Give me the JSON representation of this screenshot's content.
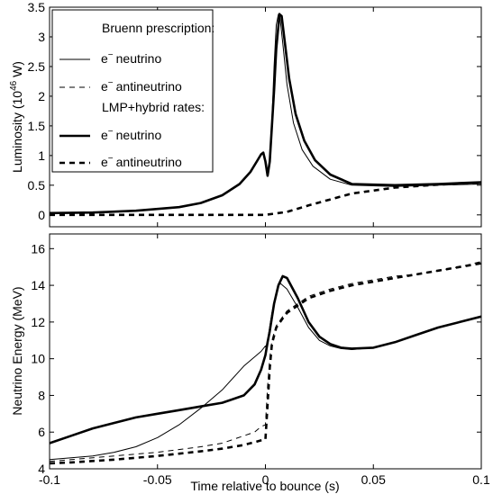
{
  "chart_data": [
    {
      "type": "line",
      "ylabel_main": "Luminosity (10",
      "ylabel_exp": "46",
      "ylabel_unit": " W)",
      "xlim": [
        -0.1,
        0.1
      ],
      "ylim": [
        -0.2,
        3.5
      ],
      "xticks": [
        -0.1,
        -0.05,
        0,
        0.05,
        0.1
      ],
      "yticks": [
        "0",
        "0.5",
        "1",
        "1.5",
        "2",
        "2.5",
        "3",
        "3.5"
      ],
      "ytick_values": [
        0,
        0.5,
        1,
        1.5,
        2,
        2.5,
        3,
        3.5
      ],
      "legend": {
        "group1_title": "Bruenn prescription:",
        "group2_title": "LMP+hybrid rates:",
        "entries": [
          {
            "label": "neutrino",
            "style": "thin-solid"
          },
          {
            "label": "antineutrino",
            "style": "thin-dashed"
          },
          {
            "label": "neutrino",
            "style": "thick-solid"
          },
          {
            "label": "antineutrino",
            "style": "thick-dashed"
          }
        ]
      },
      "series": [
        {
          "style": "thin-solid",
          "x": [
            -0.1,
            -0.08,
            -0.06,
            -0.04,
            -0.03,
            -0.02,
            -0.012,
            -0.007,
            -0.004,
            -0.002,
            -0.001,
            0,
            0.001,
            0.0015,
            0.003,
            0.004,
            0.005,
            0.006,
            0.0065,
            0.008,
            0.01,
            0.013,
            0.017,
            0.022,
            0.03,
            0.04,
            0.06,
            0.08,
            0.1
          ],
          "y": [
            0.03,
            0.04,
            0.07,
            0.13,
            0.2,
            0.33,
            0.52,
            0.72,
            0.9,
            1.02,
            1.05,
            0.9,
            0.66,
            0.72,
            1.6,
            2.5,
            3.2,
            3.38,
            3.4,
            2.9,
            2.2,
            1.55,
            1.1,
            0.82,
            0.6,
            0.5,
            0.48,
            0.5,
            0.52
          ]
        },
        {
          "style": "thin-dashed",
          "x": [
            -0.1,
            -0.05,
            0,
            0.01,
            0.02,
            0.04,
            0.06,
            0.08,
            0.1
          ],
          "y": [
            0.0,
            0.0,
            0.0,
            0.05,
            0.17,
            0.37,
            0.47,
            0.52,
            0.55
          ]
        },
        {
          "style": "thick-solid",
          "x": [
            -0.1,
            -0.08,
            -0.06,
            -0.04,
            -0.03,
            -0.02,
            -0.012,
            -0.007,
            -0.004,
            -0.002,
            -0.001,
            0,
            0.001,
            0.002,
            0.004,
            0.005,
            0.0065,
            0.0075,
            0.009,
            0.011,
            0.014,
            0.018,
            0.023,
            0.03,
            0.04,
            0.06,
            0.08,
            0.1
          ],
          "y": [
            0.03,
            0.04,
            0.07,
            0.13,
            0.2,
            0.33,
            0.52,
            0.72,
            0.9,
            1.02,
            1.05,
            0.9,
            0.66,
            0.9,
            2.1,
            2.8,
            3.38,
            3.35,
            2.9,
            2.3,
            1.7,
            1.25,
            0.92,
            0.68,
            0.52,
            0.5,
            0.52,
            0.55
          ]
        },
        {
          "style": "thick-dashed",
          "x": [
            -0.1,
            -0.05,
            0,
            0.01,
            0.02,
            0.04,
            0.06,
            0.08,
            0.1
          ],
          "y": [
            0.0,
            0.0,
            0.0,
            0.05,
            0.16,
            0.36,
            0.46,
            0.51,
            0.54
          ]
        }
      ]
    },
    {
      "type": "line",
      "xlabel": "Time relative to bounce (s)",
      "ylabel": "Neutrino Energy (MeV)",
      "xlim": [
        -0.1,
        0.1
      ],
      "ylim": [
        4,
        16.8
      ],
      "xticks": [
        -0.1,
        -0.05,
        0,
        0.05,
        0.1
      ],
      "xtick_labels": [
        "-0.1",
        "-0.05",
        "0",
        "0.05",
        "0.1"
      ],
      "yticks": [
        "4",
        "6",
        "8",
        "10",
        "12",
        "14",
        "16"
      ],
      "ytick_values": [
        4,
        6,
        8,
        10,
        12,
        14,
        16
      ],
      "series": [
        {
          "style": "thin-solid",
          "x": [
            -0.1,
            -0.09,
            -0.08,
            -0.07,
            -0.06,
            -0.05,
            -0.04,
            -0.03,
            -0.02,
            -0.01,
            -0.005,
            -0.002,
            0,
            0.0005,
            0.001,
            0.003,
            0.005,
            0.006,
            0.007,
            0.01,
            0.015,
            0.02,
            0.025,
            0.03,
            0.035,
            0.04,
            0.05,
            0.06,
            0.07,
            0.08,
            0.09,
            0.1
          ],
          "y": [
            4.5,
            4.6,
            4.7,
            4.9,
            5.2,
            5.7,
            6.4,
            7.3,
            8.3,
            9.6,
            10.1,
            10.4,
            10.7,
            10.5,
            11.0,
            12.5,
            13.6,
            14.0,
            14.1,
            13.8,
            12.8,
            11.7,
            11.0,
            10.7,
            10.55,
            10.5,
            10.6,
            10.9,
            11.3,
            11.7,
            12.0,
            12.3
          ]
        },
        {
          "style": "thin-dashed",
          "x": [
            -0.1,
            -0.09,
            -0.07,
            -0.05,
            -0.03,
            -0.02,
            -0.01,
            -0.005,
            -0.002,
            0,
            0.001,
            0.002,
            0.003,
            0.005,
            0.008,
            0.01,
            0.02,
            0.03,
            0.04,
            0.05,
            0.06,
            0.07,
            0.08,
            0.09,
            0.1
          ],
          "y": [
            4.4,
            4.5,
            4.7,
            4.9,
            5.2,
            5.4,
            5.8,
            6.0,
            6.3,
            6.4,
            8.5,
            10.0,
            11.0,
            11.8,
            12.3,
            12.6,
            13.4,
            13.8,
            14.1,
            14.3,
            14.5,
            14.6,
            14.8,
            15.0,
            15.3
          ]
        },
        {
          "style": "thick-solid",
          "x": [
            -0.1,
            -0.09,
            -0.08,
            -0.07,
            -0.06,
            -0.05,
            -0.04,
            -0.03,
            -0.02,
            -0.01,
            -0.005,
            -0.002,
            0,
            0.001,
            0.002,
            0.004,
            0.006,
            0.008,
            0.01,
            0.015,
            0.02,
            0.025,
            0.03,
            0.035,
            0.04,
            0.05,
            0.06,
            0.07,
            0.08,
            0.09,
            0.1
          ],
          "y": [
            5.4,
            5.8,
            6.2,
            6.5,
            6.8,
            7.0,
            7.2,
            7.4,
            7.6,
            8.0,
            8.6,
            9.4,
            10.2,
            10.9,
            11.5,
            13.0,
            14.0,
            14.5,
            14.4,
            13.3,
            12.0,
            11.2,
            10.8,
            10.6,
            10.55,
            10.6,
            10.9,
            11.3,
            11.7,
            12.0,
            12.3
          ]
        },
        {
          "style": "thick-dashed",
          "x": [
            -0.1,
            -0.09,
            -0.07,
            -0.05,
            -0.03,
            -0.02,
            -0.01,
            -0.005,
            -0.002,
            0,
            0.001,
            0.002,
            0.003,
            0.005,
            0.008,
            0.01,
            0.02,
            0.03,
            0.04,
            0.05,
            0.06,
            0.07,
            0.08,
            0.09,
            0.1
          ],
          "y": [
            4.3,
            4.35,
            4.5,
            4.7,
            4.95,
            5.1,
            5.3,
            5.45,
            5.55,
            5.6,
            7.5,
            9.5,
            10.8,
            11.7,
            12.2,
            12.5,
            13.3,
            13.7,
            14.0,
            14.2,
            14.4,
            14.6,
            14.8,
            15.0,
            15.2
          ]
        }
      ]
    }
  ]
}
